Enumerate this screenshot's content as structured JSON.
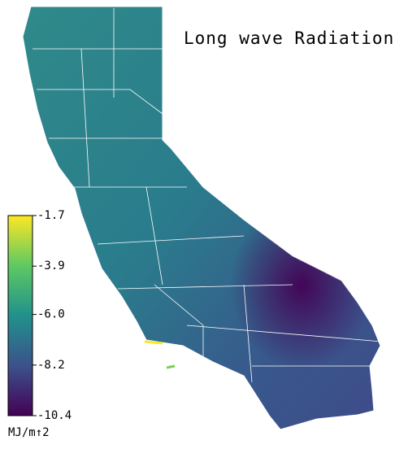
{
  "title": "Long wave Radiation",
  "colorbar": {
    "label": "MJ/m↑2",
    "range": [
      -10.4,
      -1.7
    ],
    "ticks": [
      -1.7,
      -3.9,
      {
        "value": -6,
        "label": "-6.0"
      },
      -8.2,
      -10.4
    ],
    "colors": [
      "#440154",
      "#3b528b",
      "#21918c",
      "#5ec962",
      "#fde725"
    ]
  }
}
